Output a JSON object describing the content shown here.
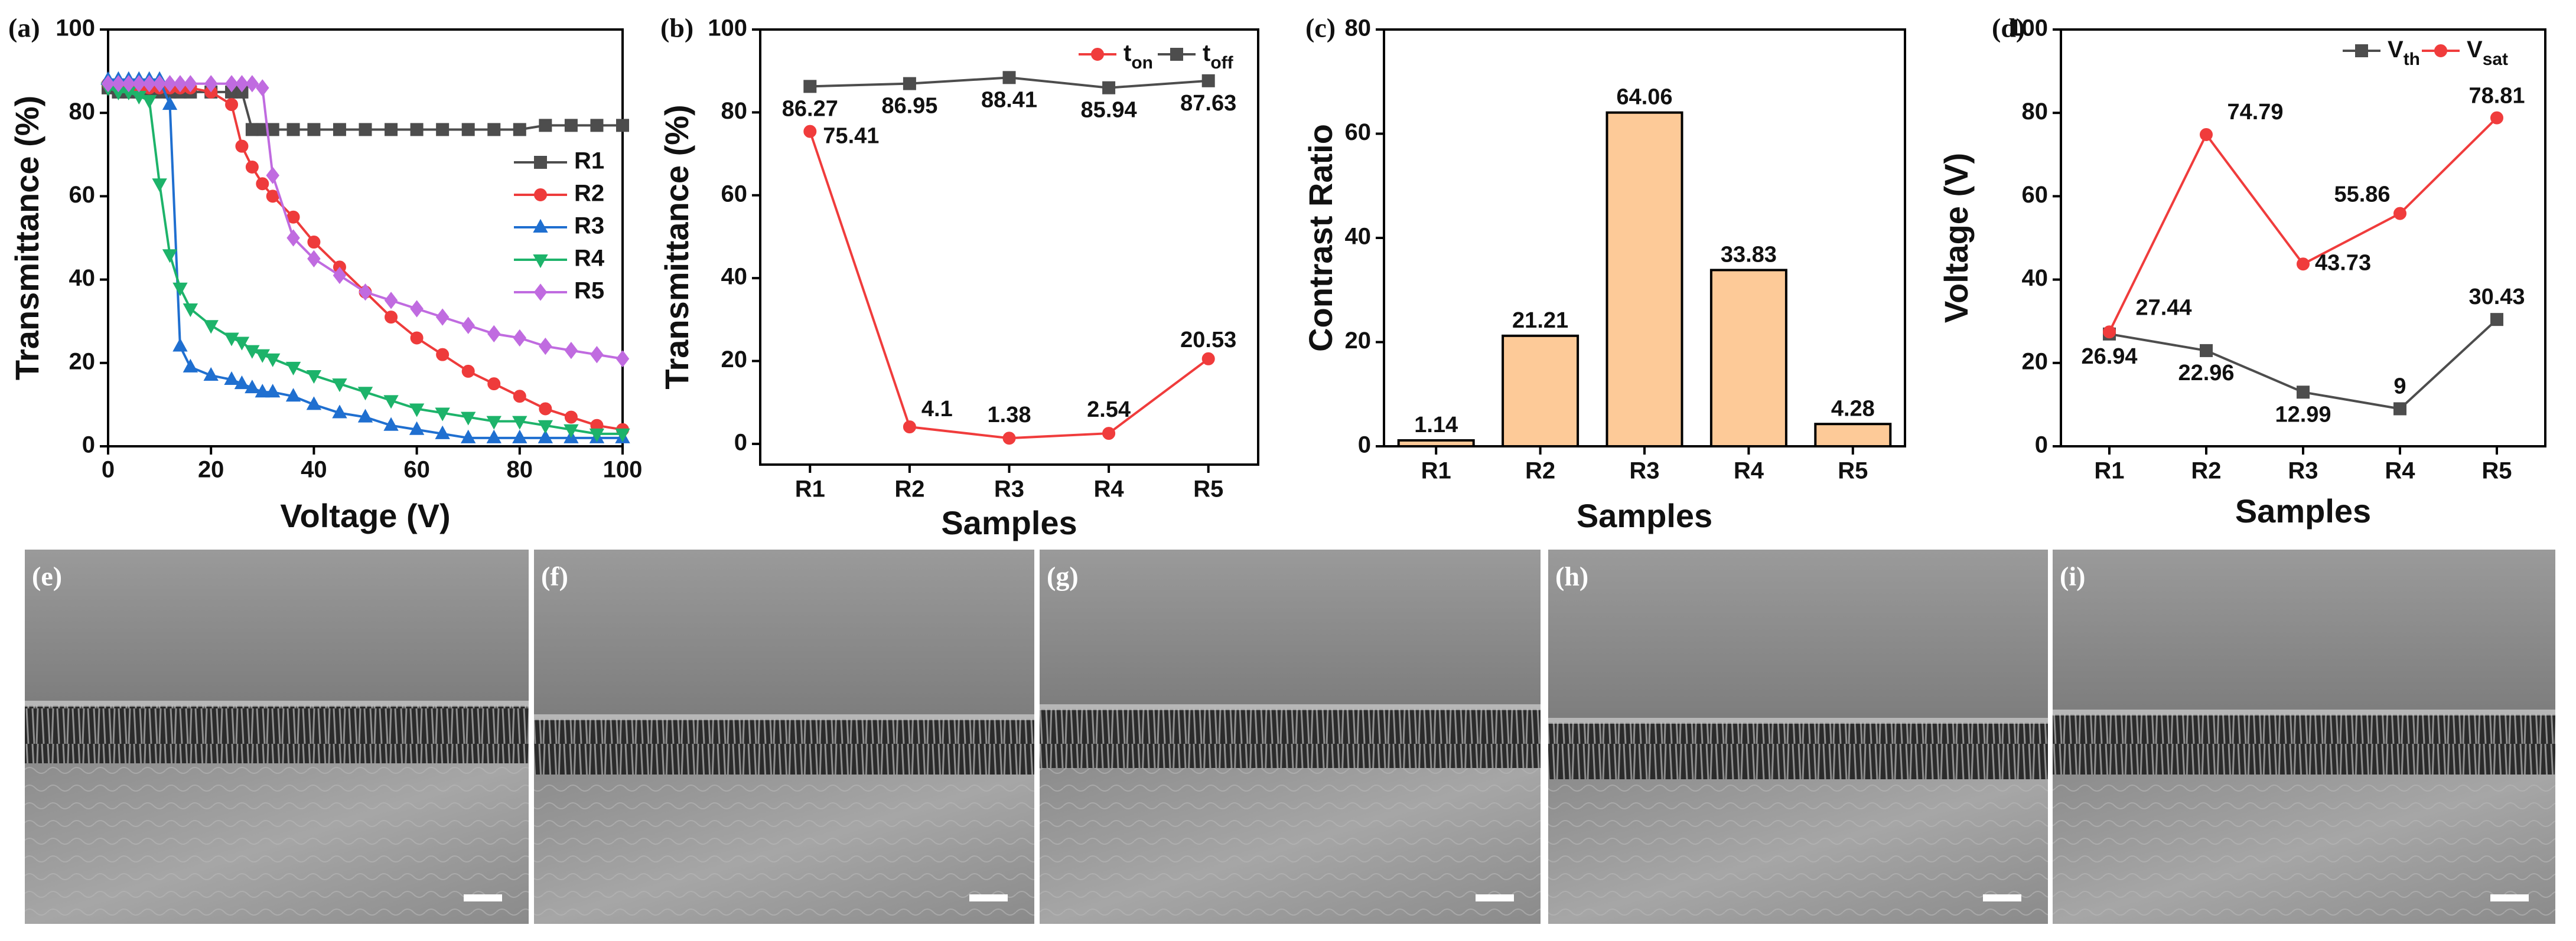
{
  "chart_data": [
    {
      "type": "line",
      "panel_label": "(a)",
      "xlabel": "Voltage (V)",
      "ylabel": "Transmittance (%)",
      "x": [
        0,
        2,
        4,
        6,
        8,
        10,
        12,
        14,
        16,
        20,
        24,
        26,
        28,
        30,
        32,
        36,
        40,
        45,
        50,
        55,
        60,
        65,
        70,
        75,
        80,
        85,
        90,
        95,
        100
      ],
      "xlim": [
        0,
        100
      ],
      "xticks": [
        0,
        20,
        40,
        60,
        80,
        100
      ],
      "ylim": [
        0,
        100
      ],
      "yticks": [
        0,
        20,
        40,
        60,
        80,
        100
      ],
      "legend": "center right",
      "series": [
        {
          "name": "R1",
          "color": "#4d4d4d",
          "marker": "square",
          "values": [
            86,
            85,
            85,
            85,
            85,
            85,
            85,
            85,
            85,
            85,
            85,
            85,
            76,
            76,
            76,
            76,
            76,
            76,
            76,
            76,
            76,
            76,
            76,
            76,
            76,
            77,
            77,
            77,
            77
          ]
        },
        {
          "name": "R2",
          "color": "#ee3b3b",
          "marker": "circle",
          "values": [
            87,
            87,
            87,
            86,
            86,
            86,
            86,
            86,
            86,
            85,
            82,
            72,
            67,
            63,
            60,
            55,
            49,
            43,
            37,
            31,
            26,
            22,
            18,
            15,
            12,
            9,
            7,
            5,
            4
          ]
        },
        {
          "name": "R3",
          "color": "#1f6fd0",
          "marker": "triangle-up",
          "values": [
            88,
            88,
            88,
            88,
            88,
            88,
            82,
            24,
            19,
            17,
            16,
            15,
            14,
            13,
            13,
            12,
            10,
            8,
            7,
            5,
            4,
            3,
            2,
            2,
            2,
            2,
            2,
            2,
            2
          ]
        },
        {
          "name": "R4",
          "color": "#1db36a",
          "marker": "triangle-down",
          "values": [
            86,
            85,
            85,
            84,
            83,
            63,
            46,
            38,
            33,
            29,
            26,
            25,
            23,
            22,
            21,
            19,
            17,
            15,
            13,
            11,
            9,
            8,
            7,
            6,
            6,
            5,
            4,
            3,
            3
          ]
        },
        {
          "name": "R5",
          "color": "#c06be0",
          "marker": "diamond",
          "values": [
            87,
            87,
            87,
            87,
            87,
            87,
            87,
            87,
            87,
            87,
            87,
            87,
            87,
            86,
            65,
            50,
            45,
            41,
            37,
            35,
            33,
            31,
            29,
            27,
            26,
            24,
            23,
            22,
            21
          ]
        }
      ]
    },
    {
      "type": "line",
      "panel_label": "(b)",
      "xlabel": "Samples",
      "ylabel": "Transmittance (%)",
      "categories": [
        "R1",
        "R2",
        "R3",
        "R4",
        "R5"
      ],
      "ylim": [
        -5,
        100
      ],
      "yticks": [
        0,
        20,
        40,
        60,
        80,
        100
      ],
      "legend": "upper right",
      "series": [
        {
          "name": "ton",
          "color": "#f03c3c",
          "marker": "circle",
          "values": [
            75.41,
            4.1,
            1.38,
            2.54,
            20.53
          ]
        },
        {
          "name": "toff",
          "color": "#4d4d4d",
          "marker": "square",
          "values": [
            86.27,
            86.95,
            88.41,
            85.94,
            87.63
          ]
        }
      ]
    },
    {
      "type": "bar",
      "panel_label": "(c)",
      "xlabel": "Samples",
      "ylabel": "Contrast Ratio",
      "categories": [
        "R1",
        "R2",
        "R3",
        "R4",
        "R5"
      ],
      "values": [
        1.14,
        21.21,
        64.06,
        33.83,
        4.28
      ],
      "color": "#fdca98",
      "edgecolor": "#000000",
      "ylim": [
        0,
        80
      ],
      "yticks": [
        0,
        20,
        40,
        60,
        80
      ]
    },
    {
      "type": "line",
      "panel_label": "(d)",
      "xlabel": "Samples",
      "ylabel": "Voltage (V)",
      "categories": [
        "R1",
        "R2",
        "R3",
        "R4",
        "R5"
      ],
      "ylim": [
        0,
        100
      ],
      "yticks": [
        0,
        20,
        40,
        60,
        80,
        100
      ],
      "legend": "upper right",
      "series": [
        {
          "name": "Vth",
          "color": "#4d4d4d",
          "marker": "square",
          "values": [
            26.94,
            22.96,
            12.99,
            9,
            30.43
          ]
        },
        {
          "name": "Vsat",
          "color": "#f03c3c",
          "marker": "circle",
          "values": [
            27.44,
            74.79,
            43.73,
            55.86,
            78.81
          ]
        }
      ]
    }
  ],
  "image_panels": [
    "(e)",
    "(f)",
    "(g)",
    "(h)",
    "(i)"
  ]
}
